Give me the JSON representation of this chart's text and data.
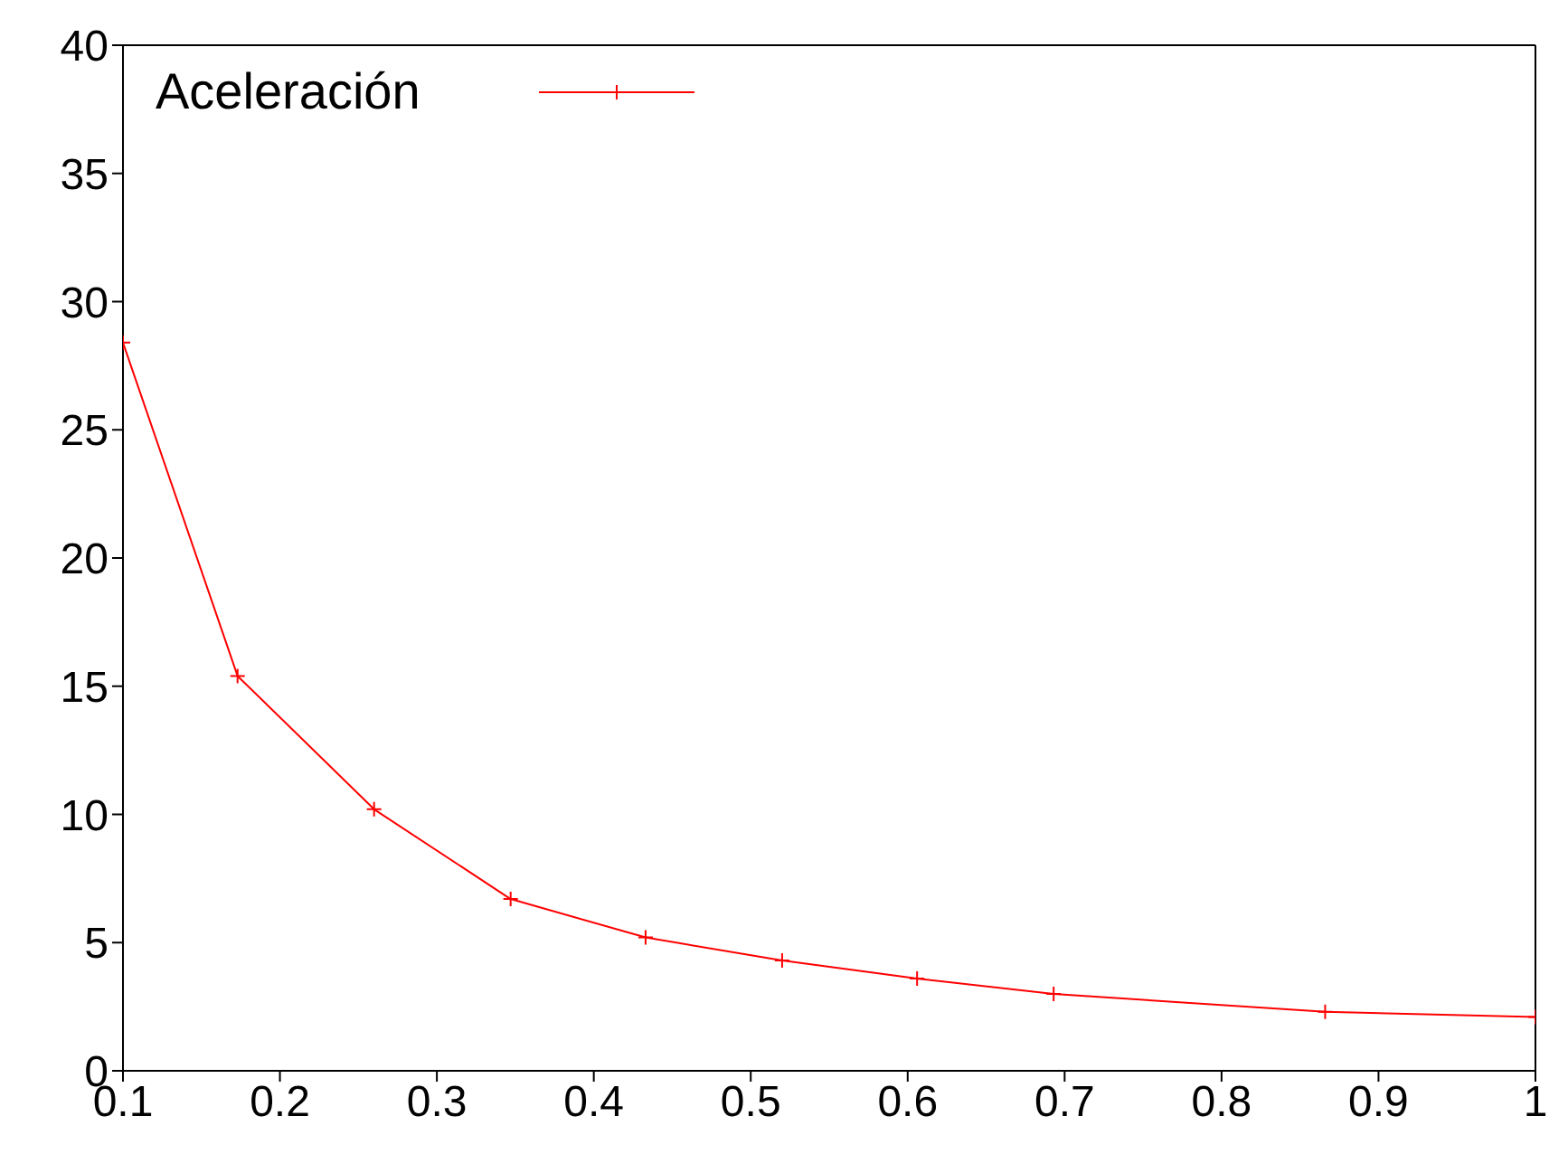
{
  "chart_data": {
    "type": "line",
    "x": [
      0.1,
      0.173,
      0.26,
      0.347,
      0.433,
      0.52,
      0.606,
      0.693,
      0.866,
      1.0
    ],
    "series": [
      {
        "name": "Aceleración",
        "color": "#ff0000",
        "values": [
          28.4,
          15.4,
          10.2,
          6.7,
          5.2,
          4.3,
          3.6,
          3.0,
          2.3,
          2.1
        ]
      }
    ],
    "xlim": [
      0.1,
      1
    ],
    "xticks": [
      0.1,
      0.2,
      0.3,
      0.4,
      0.5,
      0.6,
      0.7,
      0.8,
      0.9,
      1
    ],
    "ylim": [
      0,
      40
    ],
    "yticks": [
      0,
      5,
      10,
      15,
      20,
      25,
      30,
      35,
      40
    ],
    "marker": "cross",
    "line_style": "solid",
    "legend": "top left",
    "grid": false
  }
}
